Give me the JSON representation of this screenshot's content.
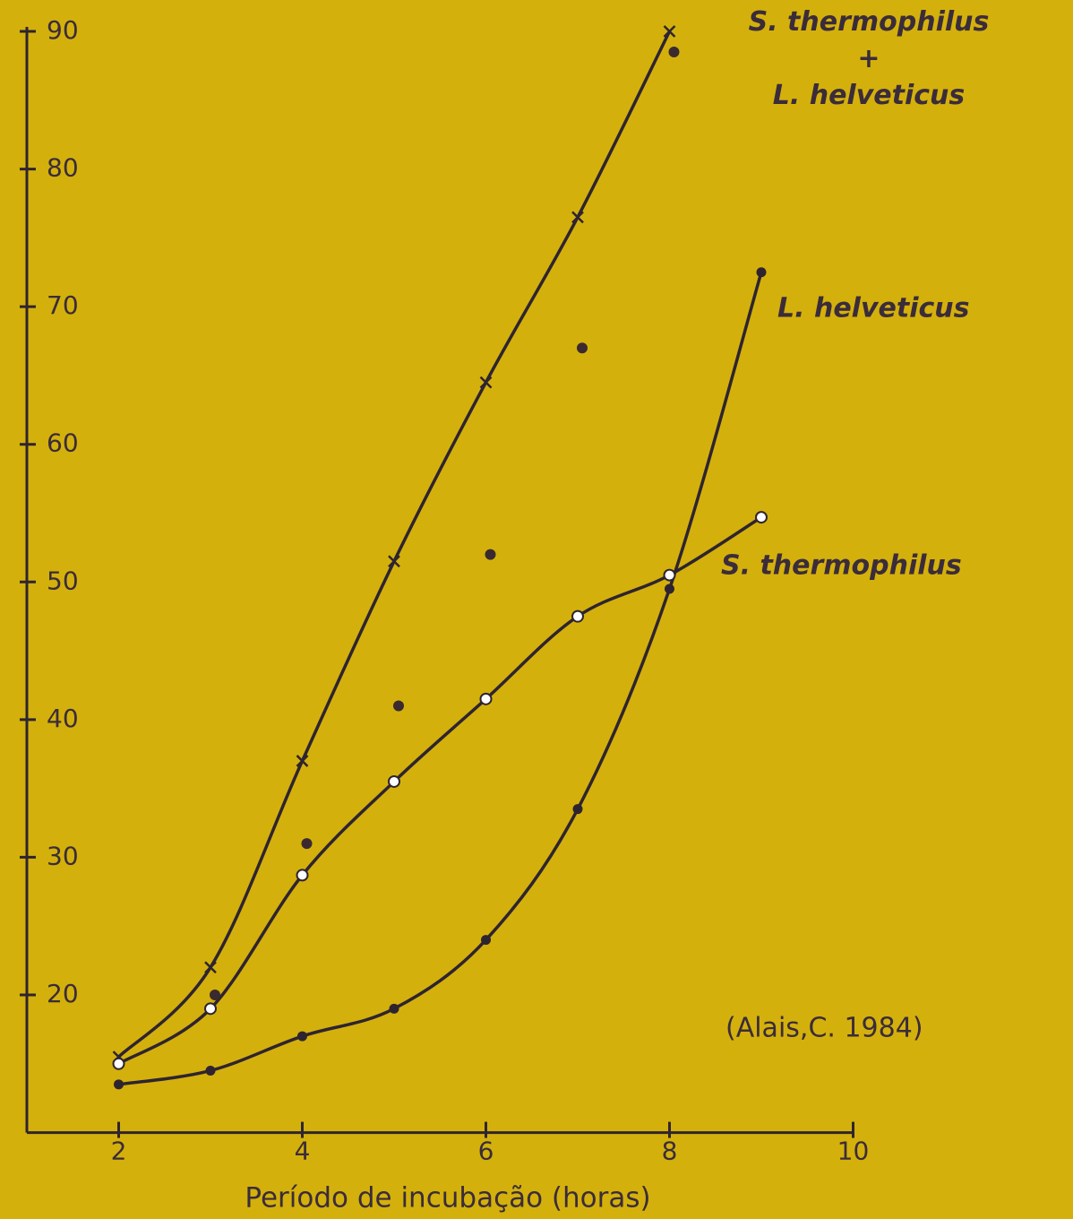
{
  "chart_data": {
    "type": "line",
    "xlabel": "Período de incubação (horas)",
    "annotation": "(Alais,C. 1984)",
    "xlim": [
      1,
      10
    ],
    "ylim": [
      10,
      90
    ],
    "xticks": [
      2,
      4,
      6,
      8,
      10
    ],
    "yticks": [
      20,
      30,
      40,
      50,
      60,
      70,
      80,
      90
    ],
    "background": "#d4b00c",
    "series": [
      {
        "name": [
          "S. thermophilus",
          "+",
          "L. helveticus"
        ],
        "color": "#2e2430",
        "marker": "cross",
        "x": [
          2,
          3,
          4,
          5,
          6,
          7,
          8
        ],
        "values": [
          15.5,
          22,
          37,
          51.5,
          64.5,
          76.5,
          90
        ]
      },
      {
        "name": "L. helveticus",
        "color": "#2e2430",
        "marker": "filled",
        "x": [
          2,
          3,
          4,
          5,
          6,
          7,
          8,
          9
        ],
        "values": [
          13.5,
          14.5,
          17,
          19,
          24,
          33.5,
          49.5,
          72.5
        ]
      },
      {
        "name": "S. thermophilus",
        "color": "#2e2430",
        "marker": "open",
        "x": [
          2,
          3,
          4,
          5,
          6,
          7,
          8,
          9
        ],
        "values": [
          15,
          19,
          28.7,
          35.5,
          41.5,
          47.5,
          50.5,
          54.7
        ]
      }
    ],
    "extra_points": {
      "color": "#3a2a30",
      "x": [
        3,
        4,
        5,
        6,
        7,
        8
      ],
      "values": [
        20,
        31,
        41,
        52,
        67,
        88.5
      ]
    }
  }
}
